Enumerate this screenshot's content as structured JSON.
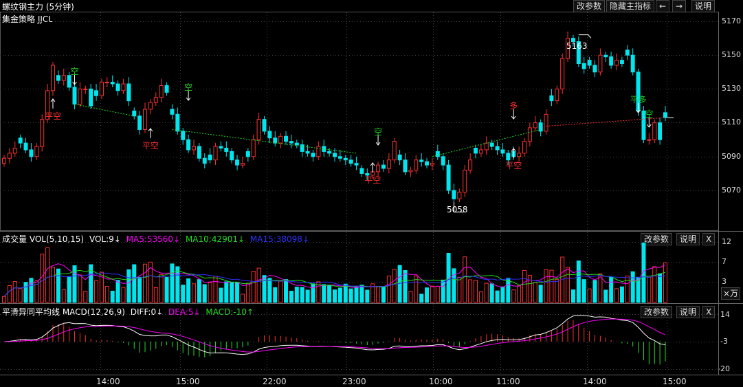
{
  "window": {
    "title": "螺纹钢主力 (5分钟)",
    "buttons": {
      "change_params": "改参数",
      "hide_indicator": "隐藏主指标",
      "prev": "←",
      "next": "→",
      "help": "说明"
    }
  },
  "main_panel": {
    "strategy_label": "集金策略 JJCL",
    "y_ticks": [
      "5170",
      "5150",
      "5130",
      "5110",
      "5090",
      "5070"
    ],
    "high_label": "5163",
    "low_label": "5058",
    "last_price": 5113
  },
  "signals": [
    {
      "text": "平空",
      "color": "#ff3030"
    },
    {
      "text": "空",
      "color": "#22cc22"
    },
    {
      "text": "平空",
      "color": "#ff3030"
    },
    {
      "text": "空",
      "color": "#22cc22"
    },
    {
      "text": "空",
      "color": "#22cc22"
    },
    {
      "text": "平空",
      "color": "#ff3030"
    },
    {
      "text": "多",
      "color": "#ff3030"
    },
    {
      "text": "平空",
      "color": "#ff3030"
    },
    {
      "text": "平多",
      "color": "#22cc22"
    },
    {
      "text": "空",
      "color": "#22cc22"
    }
  ],
  "volume_panel": {
    "label": "成交量 VOL(5,10,15)",
    "vol": "VOL:9↓",
    "ma5": "MA5:53560↓",
    "ma10": "MA10:42901↓",
    "ma15": "MA15:38098↓",
    "y_ticks": [
      "12",
      "7",
      "3"
    ],
    "unit": "×万",
    "buttons": {
      "change_params": "改参数",
      "help": "说明",
      "close": "X"
    }
  },
  "macd_panel": {
    "label": "平滑异同平均线 MACD(12,26,9)",
    "diff": "DIFF:0↓",
    "dea": "DEA:5↓",
    "macd": "MACD:-10↑",
    "y_ticks": [
      "14",
      "-3",
      "-20"
    ],
    "buttons": {
      "change_params": "改参数",
      "help": "说明",
      "close": "X"
    }
  },
  "x_axis": {
    "ticks": [
      "14:00",
      "15:00",
      "22:00",
      "23:00",
      "10:00",
      "11:00",
      "14:00",
      "15:00"
    ]
  },
  "colors": {
    "up": "#ff3030",
    "down": "#00e5ee",
    "ma5": "#ff00ff",
    "ma10": "#22dd22",
    "ma15": "#3030ff",
    "grid": "#444444"
  },
  "chart_data": {
    "type": "candlestick",
    "closes": [
      5089,
      5092,
      5095,
      5098,
      5094,
      5090,
      5096,
      5112,
      5129,
      5144,
      5135,
      5138,
      5131,
      5121,
      5130,
      5130,
      5120,
      5126,
      5134,
      5134,
      5133,
      5129,
      5133,
      5123,
      5114,
      5106,
      5118,
      5122,
      5125,
      5132,
      5128,
      5115,
      5105,
      5100,
      5094,
      5096,
      5089,
      5086,
      5088,
      5096,
      5095,
      5093,
      5088,
      5085,
      5086,
      5090,
      5100,
      5112,
      5105,
      5101,
      5098,
      5102,
      5099,
      5098,
      5097,
      5093,
      5092,
      5090,
      5096,
      5093,
      5092,
      5090,
      5089,
      5088,
      5086,
      5085,
      5080,
      5079,
      5081,
      5085,
      5083,
      5088,
      5099,
      5088,
      5081,
      5082,
      5088,
      5087,
      5085,
      5086,
      5090,
      5085,
      5070,
      5065,
      5069,
      5082,
      5088,
      5092,
      5094,
      5098,
      5096,
      5094,
      5092,
      5088,
      5090,
      5092,
      5099,
      5107,
      5110,
      5105,
      5115,
      5123,
      5130,
      5148,
      5160,
      5158,
      5145,
      5142,
      5144,
      5140,
      5150,
      5149,
      5144,
      5147,
      5145,
      5150,
      5140,
      5117,
      5100,
      5100,
      5110,
      5100,
      5113
    ]
  }
}
